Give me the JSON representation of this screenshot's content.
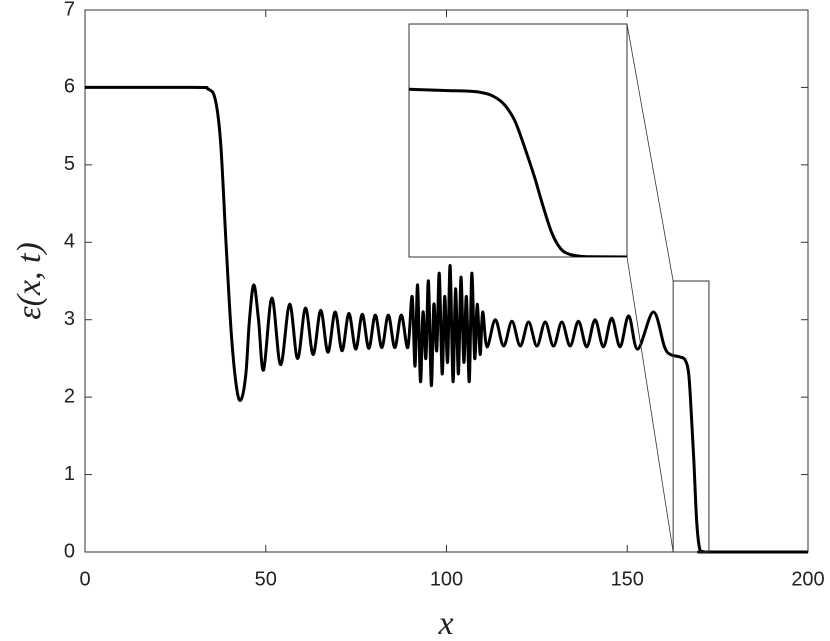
{
  "chart_data": [
    {
      "type": "line",
      "xlabel": "x",
      "ylabel": "ε(x, t)",
      "xlim": [
        0,
        200
      ],
      "ylim": [
        0,
        7
      ],
      "xticks": [
        0,
        50,
        100,
        150,
        200
      ],
      "yticks": [
        0,
        1,
        2,
        3,
        4,
        5,
        6,
        7
      ],
      "grid": false,
      "color": "#000000",
      "x": [
        0,
        30,
        34,
        36,
        37.5,
        39,
        40.5,
        42,
        43.2,
        44.5,
        45.5,
        46.7,
        48,
        49.4,
        51.7,
        54.1,
        56.6,
        58.8,
        61,
        63.1,
        65.2,
        67.2,
        69.2,
        71.1,
        73,
        74.9,
        76.7,
        78.5,
        80.3,
        82.1,
        83.9,
        85.7,
        87.5,
        89.3,
        90.5,
        91.3,
        92,
        92.8,
        93.5,
        94.3,
        95,
        95.8,
        96.5,
        97.3,
        98,
        98.8,
        99.5,
        100.3,
        101,
        101.8,
        102.5,
        103.3,
        104,
        104.8,
        105.5,
        106.3,
        107,
        107.8,
        108.5,
        109.3,
        110,
        111.2,
        113.5,
        115.8,
        118.1,
        120.4,
        122.7,
        125,
        127.3,
        129.6,
        131.9,
        134.2,
        136.5,
        138.8,
        141.1,
        143.4,
        145.7,
        148,
        150.4,
        152.9,
        157.2,
        160.3,
        162,
        164.5,
        166,
        167,
        167.7,
        168.4,
        169.2,
        170,
        171,
        172,
        200
      ],
      "values": [
        6,
        6,
        5.98,
        5.85,
        5.3,
        4.0,
        2.8,
        2.1,
        1.97,
        2.3,
        3.0,
        3.45,
        3.0,
        2.35,
        3.28,
        2.42,
        3.2,
        2.5,
        3.15,
        2.55,
        3.12,
        2.58,
        3.1,
        2.6,
        3.08,
        2.62,
        3.07,
        2.63,
        3.06,
        2.64,
        3.06,
        2.64,
        3.06,
        2.64,
        3.3,
        2.4,
        3.45,
        2.2,
        3.1,
        2.5,
        3.5,
        2.15,
        3.2,
        2.6,
        3.6,
        2.3,
        3.3,
        2.45,
        3.7,
        2.2,
        3.4,
        2.3,
        3.55,
        2.45,
        3.3,
        2.2,
        3.6,
        2.5,
        3.2,
        2.55,
        3.1,
        2.65,
        3.0,
        2.66,
        2.98,
        2.66,
        2.97,
        2.66,
        2.97,
        2.66,
        2.97,
        2.66,
        2.98,
        2.65,
        3.0,
        2.65,
        3.02,
        2.65,
        3.05,
        2.62,
        3.1,
        2.65,
        2.55,
        2.52,
        2.48,
        2.3,
        1.8,
        1.2,
        0.4,
        0.05,
        0.005,
        0,
        0
      ]
    },
    {
      "type": "line",
      "xlim": [
        162.7,
        172.6
      ],
      "ylim": [
        0,
        3.5
      ],
      "color": "#000000",
      "x": [
        162.7,
        163.5,
        164.5,
        165.5,
        166,
        166.5,
        167,
        167.5,
        168,
        168.4,
        168.8,
        169.2,
        169.6,
        170,
        170.5,
        171,
        172.6
      ],
      "values": [
        2.52,
        2.51,
        2.5,
        2.49,
        2.47,
        2.42,
        2.3,
        2.05,
        1.6,
        1.2,
        0.75,
        0.35,
        0.12,
        0.04,
        0.01,
        0.003,
        0
      ]
    }
  ]
}
